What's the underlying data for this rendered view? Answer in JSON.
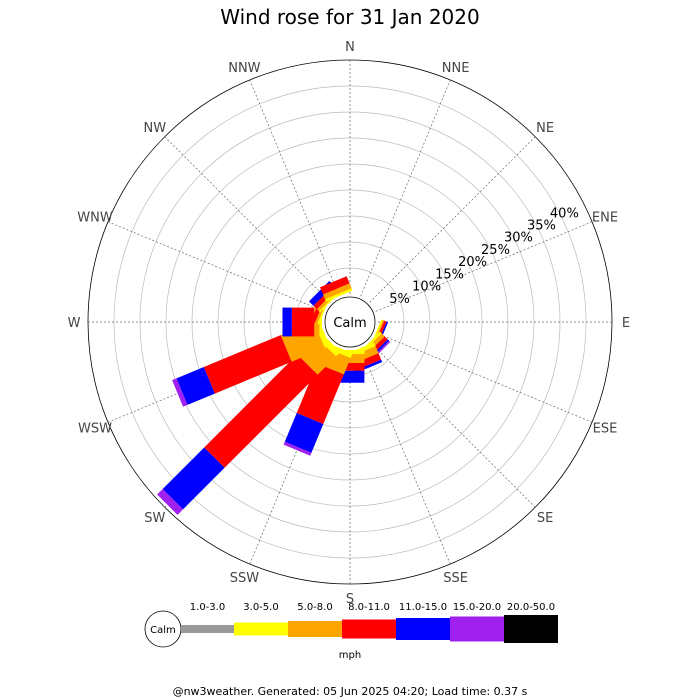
{
  "chart_data": {
    "type": "wind-rose",
    "title": "Wind rose for 31 Jan 2020",
    "directions": [
      "N",
      "NNE",
      "NE",
      "ENE",
      "E",
      "ESE",
      "SE",
      "SSE",
      "S",
      "SSW",
      "SW",
      "WSW",
      "W",
      "WNW",
      "NW",
      "NNW"
    ],
    "ring_labels": [
      "5%",
      "10%",
      "15%",
      "20%",
      "25%",
      "30%",
      "35%",
      "40%"
    ],
    "ring_values": [
      5,
      10,
      15,
      20,
      25,
      30,
      35,
      40
    ],
    "rmax": 45,
    "calm_label": "Calm",
    "unit": "mph",
    "speed_bins": [
      {
        "label": "1.0-3.0",
        "color": "#999999"
      },
      {
        "label": "3.0-5.0",
        "color": "#ffff00"
      },
      {
        "label": "5.0-8.0",
        "color": "#ffa500"
      },
      {
        "label": "8.0-11.0",
        "color": "#ff0000"
      },
      {
        "label": "11.0-15.0",
        "color": "#0000ff"
      },
      {
        "label": "15.0-20.0",
        "color": "#a020f0"
      },
      {
        "label": "20.0-50.0",
        "color": "#000000"
      }
    ],
    "frequencies": {
      "N": [
        0,
        0,
        0,
        0,
        0,
        0,
        0
      ],
      "NNE": [
        0,
        0,
        0,
        0,
        0,
        0,
        0
      ],
      "NE": [
        0,
        0,
        0,
        0,
        0,
        0,
        0
      ],
      "ENE": [
        0,
        0,
        0,
        0,
        0,
        0,
        0
      ],
      "E": [
        0,
        0,
        0,
        0,
        0,
        0,
        0
      ],
      "ESE": [
        0,
        0.3,
        0.3,
        0.5,
        0.3,
        0,
        0
      ],
      "SE": [
        0,
        0.5,
        0.8,
        0.8,
        0.4,
        0.3,
        0
      ],
      "SSE": [
        0,
        0.8,
        1.5,
        1.3,
        0.5,
        0,
        0
      ],
      "S": [
        0,
        0.8,
        1.7,
        1.5,
        2.3,
        0,
        0
      ],
      "SSW": [
        0,
        1.0,
        3.4,
        10.3,
        6.0,
        0.6,
        0
      ],
      "SW": [
        0,
        1.2,
        5.0,
        25.3,
        11.3,
        1.5,
        0
      ],
      "WSW": [
        0,
        1.0,
        6.9,
        16.0,
        5.7,
        0.9,
        0
      ],
      "W": [
        0,
        0.5,
        1.0,
        4.3,
        1.8,
        0,
        0
      ],
      "WNW": [
        0,
        0.3,
        0.5,
        0.8,
        0,
        0,
        0
      ],
      "NW": [
        0,
        0.3,
        0.6,
        0.9,
        1.2,
        0,
        0
      ],
      "NNW": [
        0,
        0.5,
        1.0,
        1.5,
        0,
        0,
        0
      ]
    }
  },
  "footer": "@nw3weather. Generated: 05 Jun 2025 04:20; Load time: 0.37 s"
}
